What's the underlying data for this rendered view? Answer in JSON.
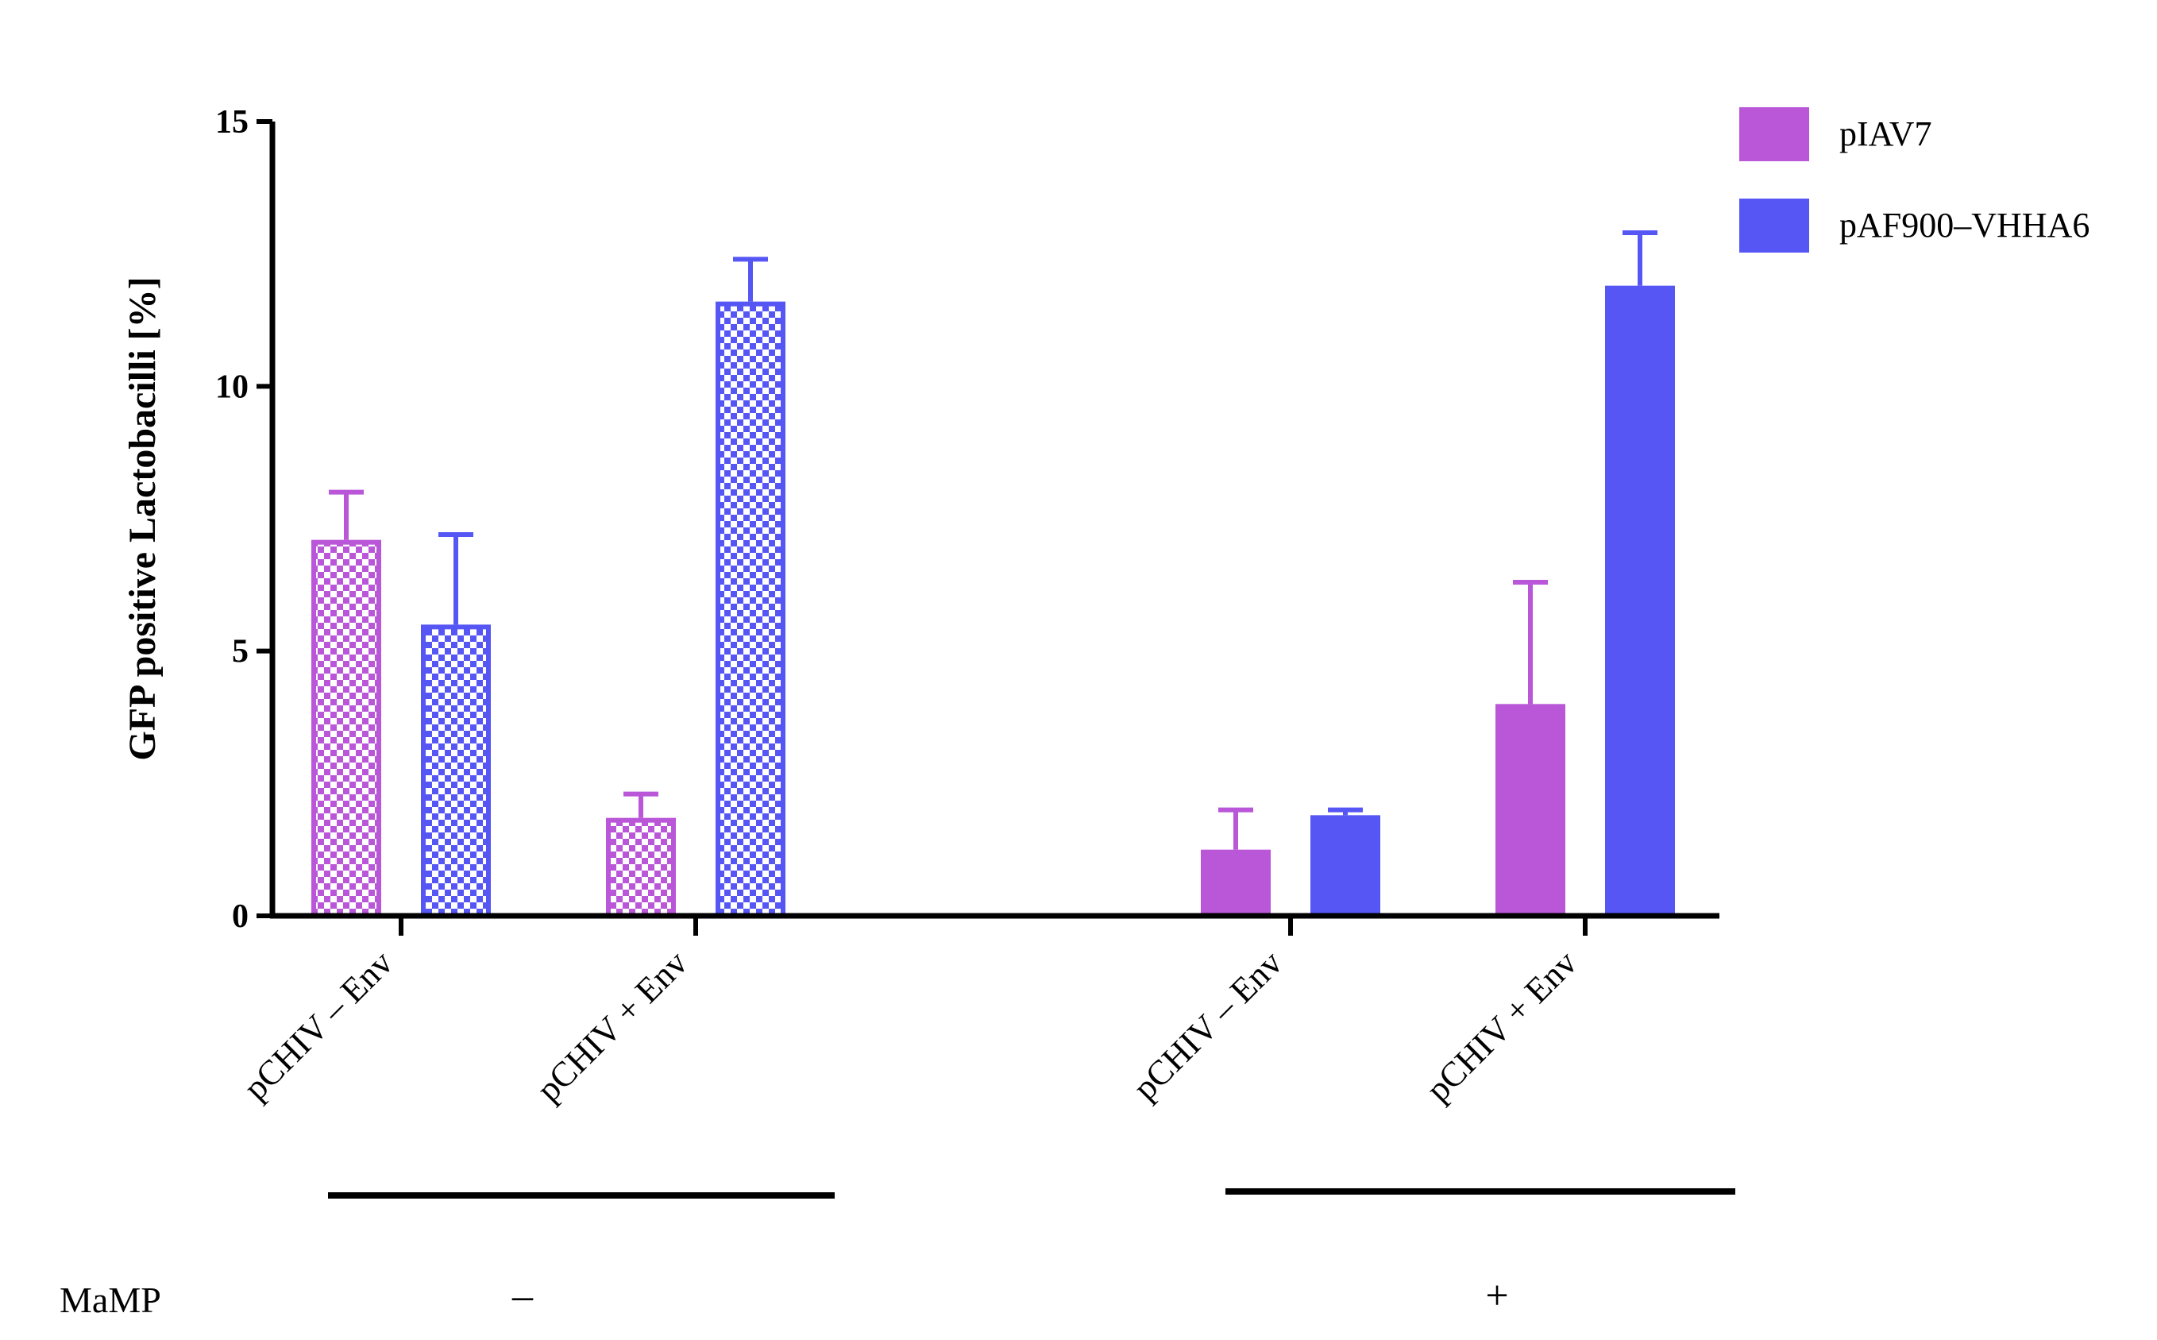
{
  "chart_data": {
    "type": "bar",
    "ylabel": "GFP positive Lactobacilli [%]",
    "xlabel": "",
    "ylim": [
      0,
      15
    ],
    "yticks": [
      "0",
      "5",
      "10",
      "15"
    ],
    "ytick_values": [
      0,
      5,
      10,
      15
    ],
    "categories": [
      "pCHIV – Env",
      "pCHIV + Env",
      "pCHIV – Env",
      "pCHIV + Env"
    ],
    "series": [
      {
        "name": "pIAV7",
        "color": "#b957d8",
        "values": [
          7.1,
          1.85,
          1.25,
          4.0
        ],
        "errors": [
          0.9,
          0.45,
          0.75,
          2.3
        ]
      },
      {
        "name": "pAF900–VHHA6",
        "color": "#5656f5",
        "values": [
          5.5,
          11.6,
          1.9,
          11.9
        ],
        "errors": [
          1.7,
          0.8,
          0.1,
          1.0
        ]
      }
    ],
    "pattern": [
      "checkered",
      "checkered",
      "solid",
      "solid"
    ],
    "group_factor": {
      "name": "MaMP",
      "levels": [
        {
          "label": "–",
          "categories": [
            0,
            1
          ]
        },
        {
          "label": "+",
          "categories": [
            2,
            3
          ]
        }
      ]
    },
    "legend_position": "top-right",
    "grid": false
  }
}
